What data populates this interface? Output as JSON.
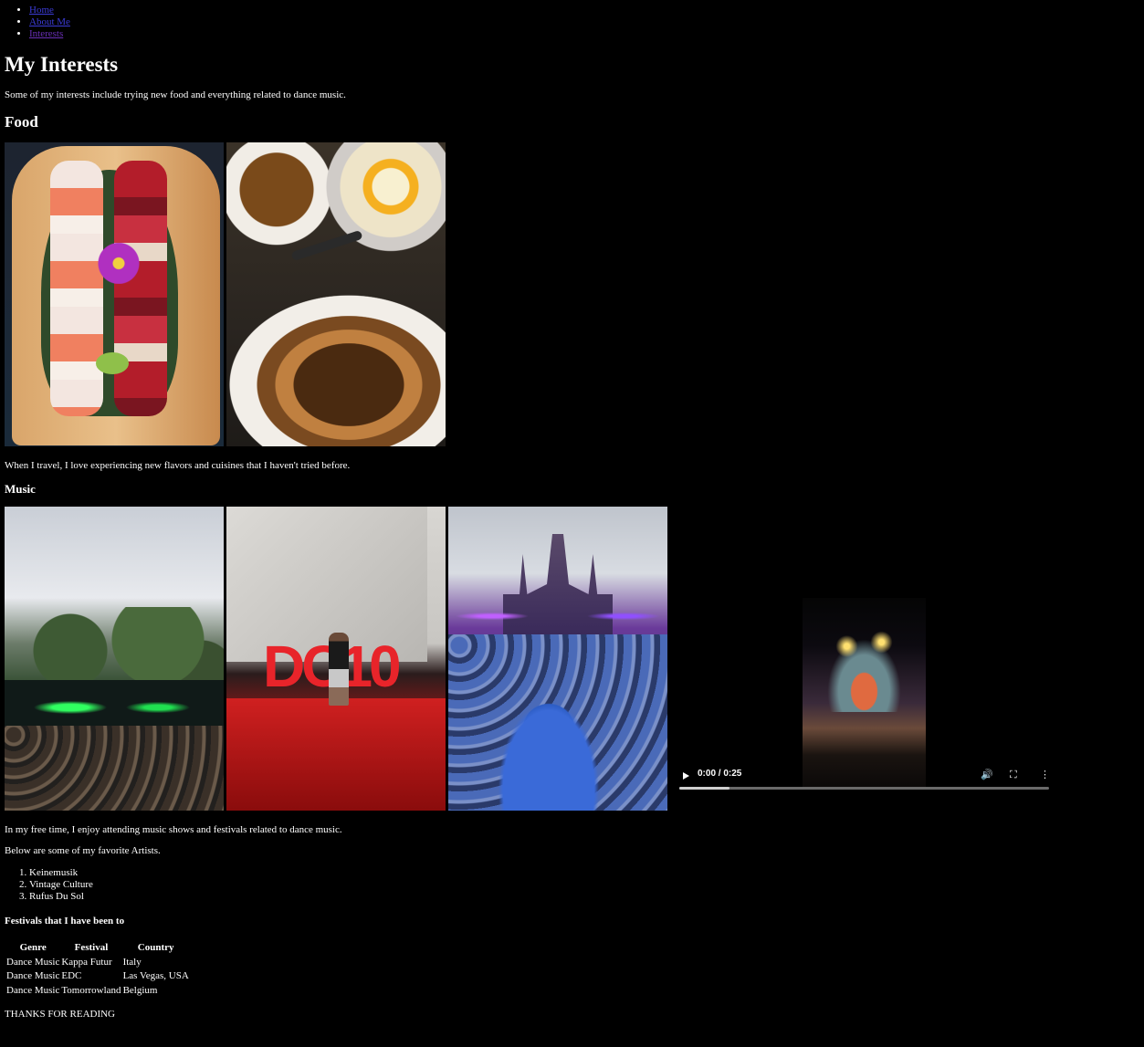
{
  "nav": {
    "items": [
      {
        "label": "Home"
      },
      {
        "label": "About Me"
      },
      {
        "label": "Interests"
      }
    ]
  },
  "page": {
    "title": "My Interests",
    "intro": "Some of my interests include trying new food and everything related to dance music."
  },
  "food": {
    "heading": "Food",
    "caption": "When I travel, I love experiencing new flavors and cuisines that I haven't tried before."
  },
  "music": {
    "heading": "Music",
    "caption": "In my free time, I enjoy attending music shows and festivals related to dance music.",
    "artists_intro": "Below are some of my favorite Artists.",
    "artists": [
      "Keinemusik",
      "Vintage Culture",
      "Rufus Du Sol"
    ],
    "dc10_sign": "DC10",
    "video": {
      "time": "0:00 / 0:25",
      "progress": 0.0,
      "volume_icon": "volume-icon",
      "fullscreen_icon": "fullscreen-icon",
      "more_icon": "more-options-icon"
    }
  },
  "festivals": {
    "heading": "Festivals that I have been to",
    "headers": [
      "Genre",
      "Festival",
      "Country"
    ],
    "rows": [
      [
        "Dance Music",
        "Kappa Futur",
        "Italy"
      ],
      [
        "Dance Music",
        "EDC",
        "Las Vegas, USA"
      ],
      [
        "Dance Music",
        "Tomorrowland",
        "Belgium"
      ]
    ]
  },
  "footer": {
    "thanks": "THANKS FOR READING"
  }
}
